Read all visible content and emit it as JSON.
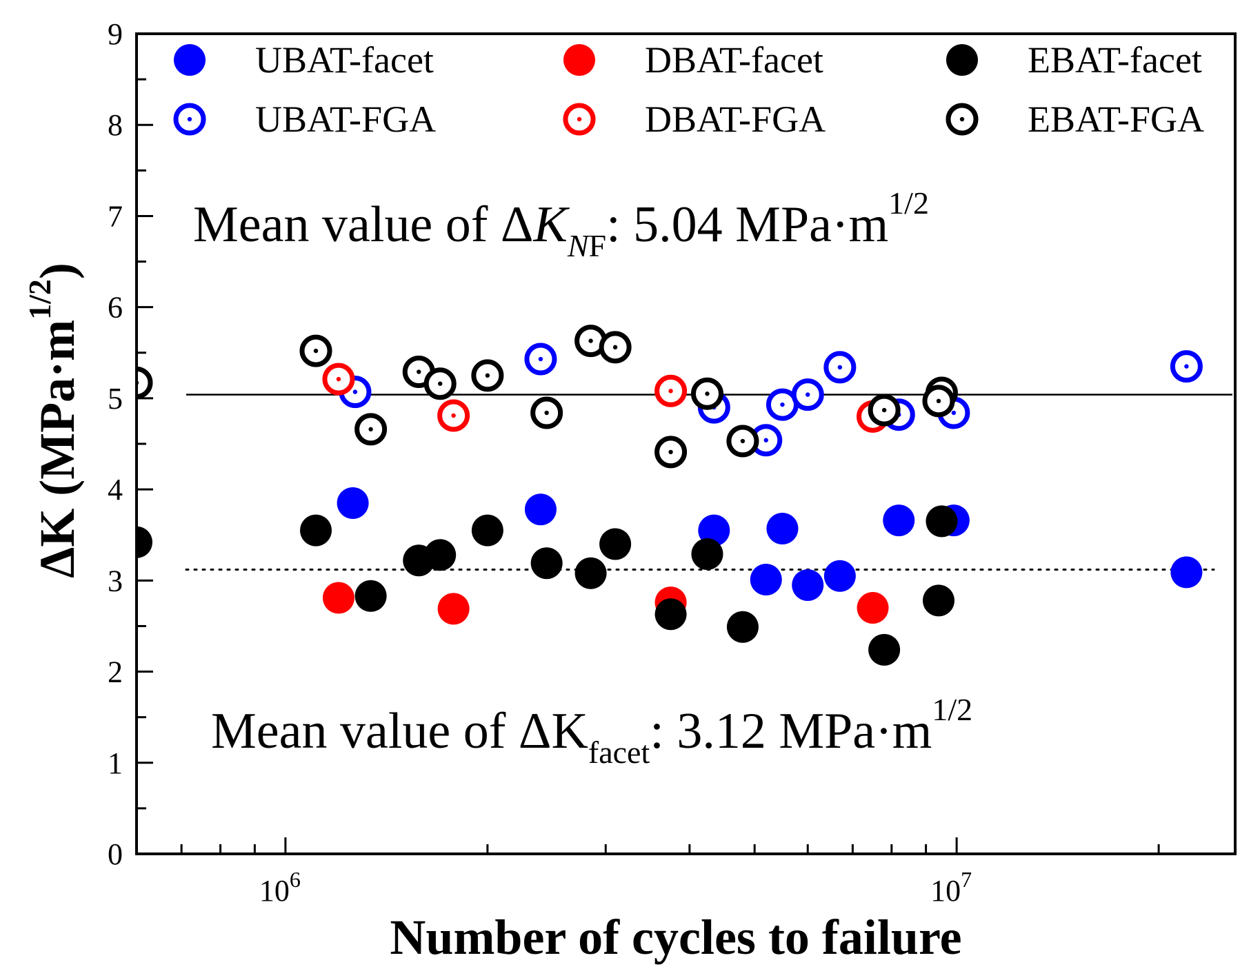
{
  "chart_data": {
    "type": "scatter",
    "xscale": "log",
    "xlim": [
      600000,
      26000000
    ],
    "ylim": [
      0,
      9
    ],
    "xlabel": "Number of cycles to failure",
    "ylabel": {
      "prefix": "ΔK (MPa·m",
      "exponent": "1/2",
      "suffix": ")"
    },
    "x_tick_labels": [
      {
        "value": 1000000,
        "base": "10",
        "exp": "6"
      },
      {
        "value": 10000000,
        "base": "10",
        "exp": "7"
      }
    ],
    "y_tick_labels": [
      "0",
      "1",
      "2",
      "3",
      "4",
      "5",
      "6",
      "7",
      "8",
      "9"
    ],
    "reference_lines": [
      {
        "name": "mean-nf",
        "y": 5.04,
        "style": "solid"
      },
      {
        "name": "mean-facet",
        "y": 3.12,
        "style": "dotted"
      }
    ],
    "annotations": {
      "nf": {
        "prefix": "Mean value of Δ",
        "symbol": "K",
        "subscript_italic": "N",
        "subscript": "F",
        "value": ": 5.04 MPa·m",
        "exponent": "1/2"
      },
      "facet": {
        "prefix": "Mean value of ΔK",
        "subscript": "facet",
        "value": ": 3.12 MPa·m",
        "exponent": "1/2"
      }
    },
    "series": [
      {
        "name": "UBAT-facet",
        "color": "#0000ff",
        "marker": "filled",
        "points": [
          [
            1260000,
            3.85
          ],
          [
            2400000,
            3.78
          ],
          [
            4350000,
            3.55
          ],
          [
            5500000,
            3.57
          ],
          [
            5200000,
            3.01
          ],
          [
            6000000,
            2.95
          ],
          [
            6700000,
            3.05
          ],
          [
            8200000,
            3.66
          ],
          [
            9900000,
            3.66
          ],
          [
            22000000,
            3.09
          ]
        ]
      },
      {
        "name": "DBAT-facet",
        "color": "#ff0000",
        "marker": "filled",
        "points": [
          [
            1200000,
            2.81
          ],
          [
            1780000,
            2.69
          ],
          [
            3750000,
            2.76
          ],
          [
            7500000,
            2.7
          ]
        ]
      },
      {
        "name": "EBAT-facet",
        "color": "#000000",
        "marker": "filled",
        "points": [
          [
            600000,
            3.42
          ],
          [
            1110000,
            3.55
          ],
          [
            1340000,
            2.83
          ],
          [
            1580000,
            3.22
          ],
          [
            1700000,
            3.28
          ],
          [
            2000000,
            3.55
          ],
          [
            2450000,
            3.19
          ],
          [
            2850000,
            3.08
          ],
          [
            3100000,
            3.4
          ],
          [
            3750000,
            2.63
          ],
          [
            4250000,
            3.29
          ],
          [
            4800000,
            2.49
          ],
          [
            7800000,
            2.24
          ],
          [
            9500000,
            3.65
          ],
          [
            9400000,
            2.78
          ]
        ]
      },
      {
        "name": "UBAT-FGA",
        "color": "#0000ff",
        "marker": "ring",
        "points": [
          [
            1270000,
            5.07
          ],
          [
            2400000,
            5.43
          ],
          [
            4350000,
            4.9
          ],
          [
            5200000,
            4.54
          ],
          [
            5500000,
            4.93
          ],
          [
            6000000,
            5.04
          ],
          [
            6700000,
            5.34
          ],
          [
            8200000,
            4.82
          ],
          [
            9900000,
            4.84
          ],
          [
            22000000,
            5.35
          ]
        ]
      },
      {
        "name": "DBAT-FGA",
        "color": "#ff0000",
        "marker": "ring",
        "points": [
          [
            1200000,
            5.21
          ],
          [
            1780000,
            4.81
          ],
          [
            3750000,
            5.08
          ],
          [
            7500000,
            4.8
          ]
        ]
      },
      {
        "name": "EBAT-FGA",
        "color": "#000000",
        "marker": "ring",
        "points": [
          [
            600000,
            5.17
          ],
          [
            1110000,
            5.52
          ],
          [
            1340000,
            4.66
          ],
          [
            1580000,
            5.29
          ],
          [
            1700000,
            5.16
          ],
          [
            2000000,
            5.25
          ],
          [
            2450000,
            4.84
          ],
          [
            2850000,
            5.63
          ],
          [
            3100000,
            5.56
          ],
          [
            3750000,
            4.41
          ],
          [
            4250000,
            5.05
          ],
          [
            4800000,
            4.53
          ],
          [
            7800000,
            4.87
          ],
          [
            9500000,
            5.06
          ],
          [
            9400000,
            4.97
          ]
        ]
      }
    ]
  }
}
